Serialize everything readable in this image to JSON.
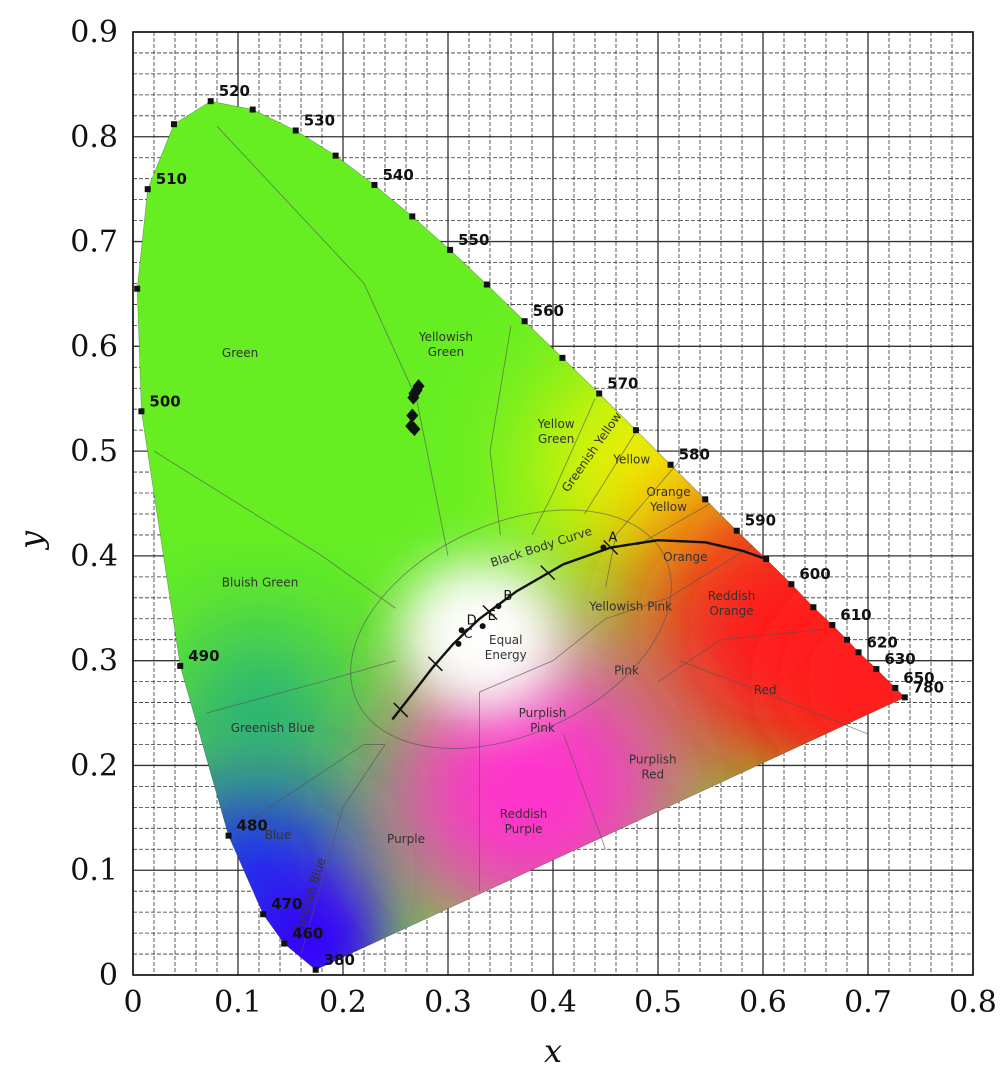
{
  "chart_data": {
    "type": "scatter",
    "xlabel": "x",
    "ylabel": "y",
    "xlim": [
      0,
      0.8
    ],
    "ylim": [
      0,
      0.9
    ],
    "x_ticks": [
      "0",
      "0.1",
      "0.2",
      "0.3",
      "0.4",
      "0.5",
      "0.6",
      "0.7",
      "0.8"
    ],
    "y_ticks": [
      "0",
      "0.1",
      "0.2",
      "0.3",
      "0.4",
      "0.5",
      "0.6",
      "0.7",
      "0.8",
      "0.9"
    ],
    "grid": true,
    "spectral_locus": [
      {
        "nm": "380",
        "x": 0.174,
        "y": 0.005,
        "label": "380"
      },
      {
        "nm": "460",
        "x": 0.144,
        "y": 0.03,
        "label": "460"
      },
      {
        "nm": "470",
        "x": 0.124,
        "y": 0.058,
        "label": "470"
      },
      {
        "nm": "480",
        "x": 0.091,
        "y": 0.133,
        "label": "480"
      },
      {
        "nm": "490",
        "x": 0.045,
        "y": 0.295,
        "label": "490"
      },
      {
        "nm": "500",
        "x": 0.008,
        "y": 0.538,
        "label": "500"
      },
      {
        "nm": "505",
        "x": 0.004,
        "y": 0.655,
        "label": ""
      },
      {
        "nm": "510",
        "x": 0.014,
        "y": 0.75,
        "label": "510"
      },
      {
        "nm": "515",
        "x": 0.039,
        "y": 0.812,
        "label": ""
      },
      {
        "nm": "520",
        "x": 0.074,
        "y": 0.834,
        "label": "520"
      },
      {
        "nm": "525",
        "x": 0.114,
        "y": 0.826,
        "label": ""
      },
      {
        "nm": "530",
        "x": 0.155,
        "y": 0.806,
        "label": "530"
      },
      {
        "nm": "535",
        "x": 0.193,
        "y": 0.782,
        "label": ""
      },
      {
        "nm": "540",
        "x": 0.23,
        "y": 0.754,
        "label": "540"
      },
      {
        "nm": "545",
        "x": 0.266,
        "y": 0.724,
        "label": ""
      },
      {
        "nm": "550",
        "x": 0.302,
        "y": 0.692,
        "label": "550"
      },
      {
        "nm": "555",
        "x": 0.337,
        "y": 0.659,
        "label": ""
      },
      {
        "nm": "560",
        "x": 0.373,
        "y": 0.624,
        "label": "560"
      },
      {
        "nm": "565",
        "x": 0.409,
        "y": 0.589,
        "label": ""
      },
      {
        "nm": "570",
        "x": 0.444,
        "y": 0.555,
        "label": "570"
      },
      {
        "nm": "575",
        "x": 0.479,
        "y": 0.52,
        "label": ""
      },
      {
        "nm": "580",
        "x": 0.512,
        "y": 0.487,
        "label": "580"
      },
      {
        "nm": "585",
        "x": 0.545,
        "y": 0.454,
        "label": ""
      },
      {
        "nm": "590",
        "x": 0.575,
        "y": 0.424,
        "label": "590"
      },
      {
        "nm": "595",
        "x": 0.603,
        "y": 0.397,
        "label": ""
      },
      {
        "nm": "600",
        "x": 0.627,
        "y": 0.373,
        "label": "600"
      },
      {
        "nm": "605",
        "x": 0.648,
        "y": 0.351,
        "label": ""
      },
      {
        "nm": "610",
        "x": 0.666,
        "y": 0.334,
        "label": "610"
      },
      {
        "nm": "615",
        "x": 0.68,
        "y": 0.32,
        "label": ""
      },
      {
        "nm": "620",
        "x": 0.691,
        "y": 0.308,
        "label": "620"
      },
      {
        "nm": "630",
        "x": 0.708,
        "y": 0.292,
        "label": "630"
      },
      {
        "nm": "650",
        "x": 0.726,
        "y": 0.274,
        "label": "650"
      },
      {
        "nm": "780",
        "x": 0.735,
        "y": 0.265,
        "label": "780"
      }
    ],
    "black_body_curve": {
      "label": "Black Body Curve",
      "points": [
        {
          "x": 0.247,
          "y": 0.244
        },
        {
          "x": 0.265,
          "y": 0.267
        },
        {
          "x": 0.285,
          "y": 0.293
        },
        {
          "x": 0.305,
          "y": 0.316
        },
        {
          "x": 0.33,
          "y": 0.34
        },
        {
          "x": 0.365,
          "y": 0.366
        },
        {
          "x": 0.41,
          "y": 0.392
        },
        {
          "x": 0.455,
          "y": 0.408
        },
        {
          "x": 0.5,
          "y": 0.415
        },
        {
          "x": 0.545,
          "y": 0.413
        },
        {
          "x": 0.58,
          "y": 0.405
        },
        {
          "x": 0.6,
          "y": 0.398
        }
      ]
    },
    "illuminants": [
      {
        "label": "A",
        "x": 0.448,
        "y": 0.408
      },
      {
        "label": "B",
        "x": 0.348,
        "y": 0.352
      },
      {
        "label": "C",
        "x": 0.31,
        "y": 0.316
      },
      {
        "label": "D",
        "x": 0.313,
        "y": 0.329
      },
      {
        "label": "E",
        "x": 0.333,
        "y": 0.333
      }
    ],
    "data_points": [
      {
        "x": 0.268,
        "y": 0.555
      },
      {
        "x": 0.27,
        "y": 0.558
      },
      {
        "x": 0.272,
        "y": 0.562
      },
      {
        "x": 0.267,
        "y": 0.551
      },
      {
        "x": 0.266,
        "y": 0.534
      },
      {
        "x": 0.265,
        "y": 0.524
      },
      {
        "x": 0.268,
        "y": 0.521
      }
    ],
    "regions": [
      {
        "lines": [
          "Yellowish",
          "Green"
        ],
        "x": 0.298,
        "y": 0.605
      },
      {
        "lines": [
          "Green"
        ],
        "x": 0.102,
        "y": 0.59
      },
      {
        "lines": [
          "Yellow",
          "Green"
        ],
        "x": 0.403,
        "y": 0.522
      },
      {
        "lines": [
          "Greenish Yellow"
        ],
        "x": 0.44,
        "y": 0.497,
        "rotate": -55
      },
      {
        "lines": [
          "Yellow"
        ],
        "x": 0.475,
        "y": 0.488
      },
      {
        "lines": [
          "Orange",
          "Yellow"
        ],
        "x": 0.51,
        "y": 0.457
      },
      {
        "lines": [
          "Orange"
        ],
        "x": 0.526,
        "y": 0.395
      },
      {
        "lines": [
          "Bluish Green"
        ],
        "x": 0.121,
        "y": 0.371
      },
      {
        "lines": [
          "Yellowish Pink"
        ],
        "x": 0.474,
        "y": 0.348
      },
      {
        "lines": [
          "Reddish",
          "Orange"
        ],
        "x": 0.57,
        "y": 0.358
      },
      {
        "lines": [
          "Equal",
          "Energy"
        ],
        "x": 0.355,
        "y": 0.316
      },
      {
        "lines": [
          "Pink"
        ],
        "x": 0.47,
        "y": 0.287
      },
      {
        "lines": [
          "Red"
        ],
        "x": 0.602,
        "y": 0.268
      },
      {
        "lines": [
          "Greenish Blue"
        ],
        "x": 0.133,
        "y": 0.232
      },
      {
        "lines": [
          "Purplish",
          "Pink"
        ],
        "x": 0.39,
        "y": 0.246
      },
      {
        "lines": [
          "Purplish",
          "Red"
        ],
        "x": 0.495,
        "y": 0.202
      },
      {
        "lines": [
          "Reddish",
          "Purple"
        ],
        "x": 0.372,
        "y": 0.15
      },
      {
        "lines": [
          "Blue"
        ],
        "x": 0.138,
        "y": 0.13
      },
      {
        "lines": [
          "Purple"
        ],
        "x": 0.26,
        "y": 0.126
      },
      {
        "lines": [
          "Purplish Blue"
        ],
        "x": 0.172,
        "y": 0.075,
        "rotate": -72
      }
    ]
  },
  "colors": {
    "green": "#66ee22",
    "yellow": "#f5f500",
    "red": "#ff1a1a",
    "blue": "#1a1aff",
    "magenta": "#ff33cc",
    "white": "#ffffff",
    "grid": "#333333"
  }
}
